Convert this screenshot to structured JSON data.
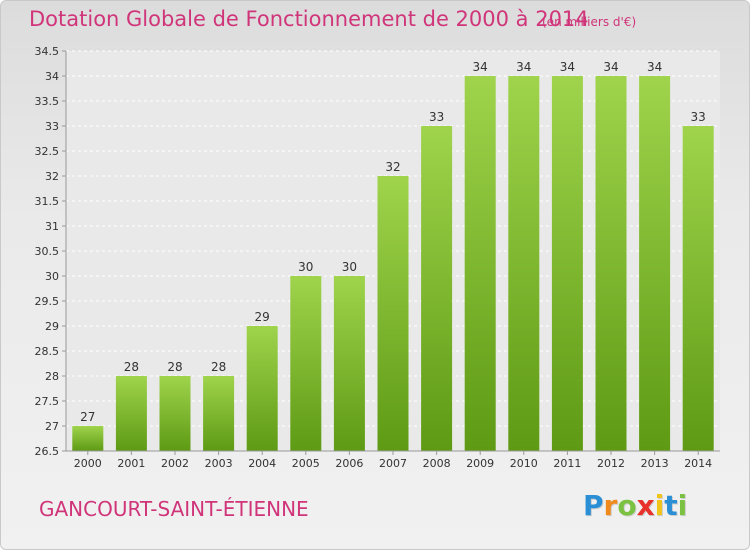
{
  "header": {
    "title": "Dotation Globale de Fonctionnement de 2000 à 2014",
    "subtitle": "(en milliers d'€)"
  },
  "footer": {
    "commune": "GANCOURT-SAINT-ÉTIENNE",
    "logo_letters": [
      "P",
      "r",
      "o",
      "x",
      "i",
      "t",
      "i"
    ],
    "logo_colors": [
      "#2b8fd6",
      "#f08a1c",
      "#7cc242",
      "#e8312a",
      "#f0c419",
      "#2b8fd6",
      "#7cc242"
    ]
  },
  "chart_data": {
    "type": "bar",
    "categories": [
      "2000",
      "2001",
      "2002",
      "2003",
      "2004",
      "2005",
      "2006",
      "2007",
      "2008",
      "2009",
      "2010",
      "2011",
      "2012",
      "2013",
      "2014"
    ],
    "values": [
      27,
      28,
      28,
      28,
      29,
      30,
      30,
      32,
      33,
      34,
      34,
      34,
      34,
      34,
      33
    ],
    "value_labels": [
      "27",
      "28",
      "28",
      "28",
      "29",
      "30",
      "30",
      "32",
      "33",
      "34",
      "34",
      "34",
      "34",
      "34",
      "33"
    ],
    "ylim": [
      26.5,
      34.5
    ],
    "yticks": [
      26.5,
      27,
      27.5,
      28,
      28.5,
      29,
      29.5,
      30,
      30.5,
      31,
      31.5,
      32,
      32.5,
      33,
      33.5,
      34,
      34.5
    ],
    "ytick_labels": [
      "26.5",
      "27",
      "27.5",
      "28",
      "28.5",
      "29",
      "29.5",
      "30",
      "30.5",
      "31",
      "31.5",
      "32",
      "32.5",
      "33",
      "33.5",
      "34",
      "34.5"
    ],
    "grid": true,
    "bar_color_top": "#9fd44c",
    "bar_color_bottom": "#5e9a14"
  }
}
